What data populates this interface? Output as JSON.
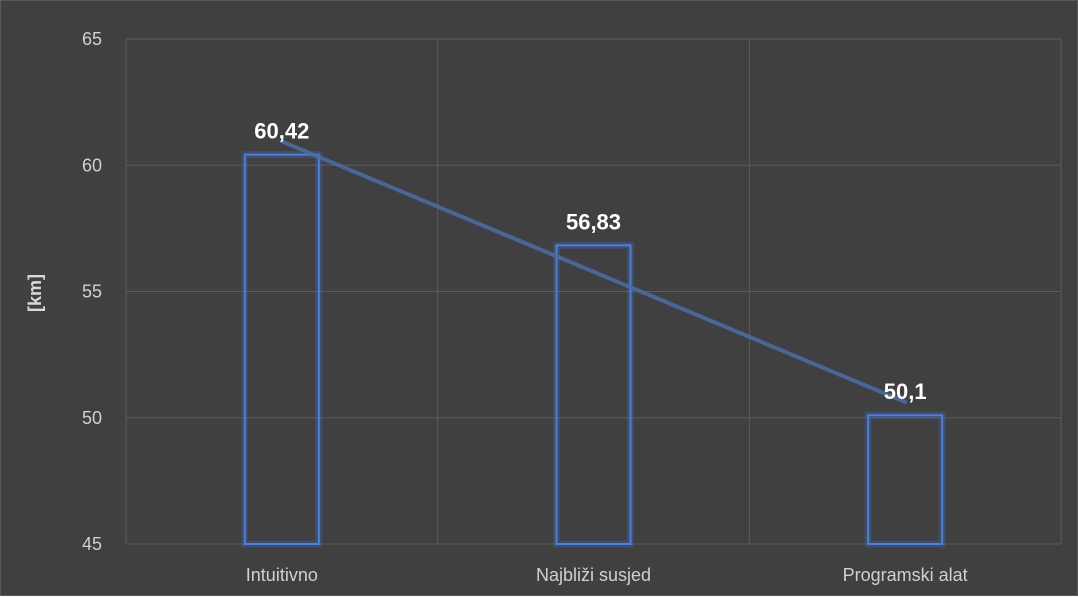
{
  "chart_data": {
    "type": "bar",
    "categories": [
      "Intuitivno",
      "Najbliži susjed",
      "Programski alat"
    ],
    "values": [
      60.42,
      56.83,
      50.1
    ],
    "data_labels": [
      "60,42",
      "56,83",
      "50,1"
    ],
    "title": "",
    "xlabel": "",
    "ylabel": "[km]",
    "ylim": [
      45,
      65
    ],
    "yticks": [
      45,
      50,
      55,
      60,
      65
    ],
    "grid": true,
    "legend": "none",
    "trendline": "linear",
    "colors": {
      "background": "#404040",
      "bar_outline": "#4a7fe0",
      "bar_glow": "#3f6fd6",
      "trendline": "#4a6da8",
      "grid": "#5c5c5c"
    }
  }
}
